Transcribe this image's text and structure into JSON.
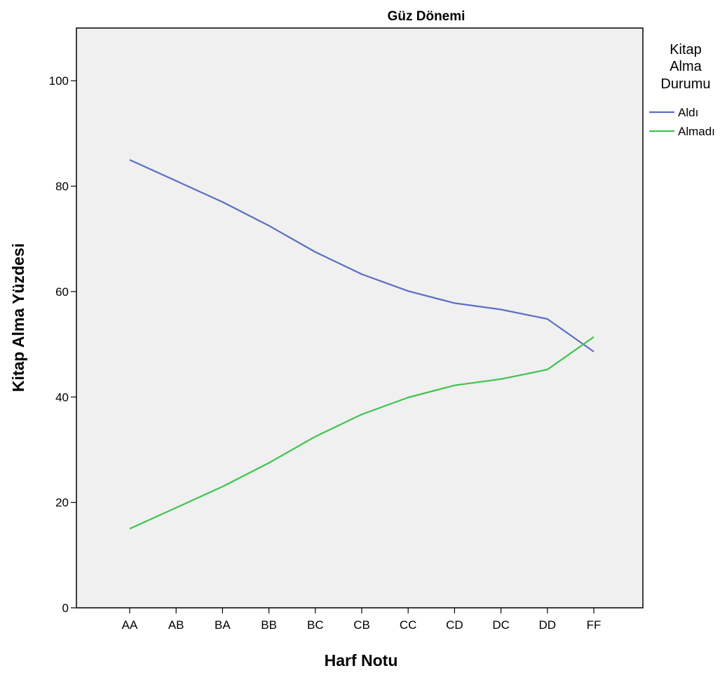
{
  "chart_data": {
    "type": "line",
    "title": "Güz Dönemi",
    "xlabel": "Harf Notu",
    "ylabel": "Kitap Alma Yüzdesi",
    "categories": [
      "AA",
      "AB",
      "BA",
      "BB",
      "BC",
      "CB",
      "CC",
      "CD",
      "DC",
      "DD",
      "FF"
    ],
    "ylim": [
      0,
      110
    ],
    "yticks": [
      0,
      20,
      40,
      60,
      80,
      100
    ],
    "grid": false,
    "legend": {
      "title_lines": [
        "Kitap",
        "Alma",
        "Durumu"
      ],
      "position": "right"
    },
    "series": [
      {
        "name": "Aldı",
        "color": "#5a6ec4",
        "values": [
          85,
          81,
          77,
          72.5,
          67.5,
          63.3,
          60.1,
          57.8,
          56.6,
          54.8,
          48.6
        ]
      },
      {
        "name": "Almadı",
        "color": "#3ec44f",
        "values": [
          15,
          19,
          23,
          27.5,
          32.5,
          36.7,
          39.9,
          42.2,
          43.4,
          45.2,
          51.4
        ]
      }
    ],
    "plot_background": "#f0f0f0"
  }
}
